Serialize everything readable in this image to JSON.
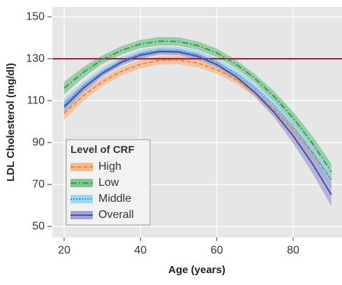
{
  "chart_data": {
    "type": "line-band",
    "xlabel": "Age (years)",
    "ylabel": "LDL Cholesterol (mg/dl)",
    "x": [
      20,
      25,
      30,
      35,
      40,
      45,
      50,
      55,
      60,
      65,
      70,
      75,
      80,
      85,
      90
    ],
    "series": [
      {
        "name": "High",
        "color": "#e8894a",
        "band_color": "#f5b98a",
        "dash": "6,3",
        "values": [
          104.0,
          112.3,
          119.0,
          124.0,
          127.4,
          129.2,
          129.4,
          127.9,
          124.8,
          120.1,
          113.8,
          105.8,
          96.2,
          85.0,
          72.2
        ],
        "lower": [
          101.0,
          109.8,
          117.0,
          122.0,
          125.4,
          127.2,
          127.4,
          125.9,
          122.8,
          118.1,
          111.8,
          103.3,
          93.2,
          81.5,
          68.2
        ],
        "upper": [
          107.0,
          114.8,
          121.0,
          126.0,
          129.4,
          131.2,
          131.4,
          129.9,
          126.8,
          122.1,
          115.8,
          108.3,
          99.2,
          88.5,
          76.2
        ]
      },
      {
        "name": "Low",
        "color": "#3a9a55",
        "band_color": "#7cc58f",
        "dash": "9,3,2,3",
        "values": [
          116.0,
          123.5,
          129.6,
          134.0,
          137.0,
          138.4,
          138.2,
          136.3,
          132.8,
          127.5,
          120.6,
          112.0,
          101.7,
          89.7,
          76.0
        ],
        "lower": [
          113.0,
          121.0,
          127.6,
          132.0,
          135.0,
          136.4,
          136.2,
          134.3,
          130.8,
          125.5,
          118.6,
          109.5,
          98.7,
          86.2,
          72.0
        ],
        "upper": [
          119.0,
          126.0,
          131.6,
          136.0,
          139.0,
          140.4,
          140.2,
          138.3,
          134.8,
          129.5,
          122.6,
          114.5,
          104.7,
          93.2,
          80.0
        ]
      },
      {
        "name": "Middle",
        "color": "#2f9fd0",
        "band_color": "#9dd6ee",
        "dash": "2,2",
        "values": [
          108.0,
          116.7,
          123.7,
          128.9,
          132.3,
          133.9,
          133.7,
          131.9,
          128.3,
          123.1,
          116.3,
          107.7,
          97.5,
          85.6,
          72.1
        ],
        "lower": [
          105.0,
          114.2,
          121.7,
          126.9,
          130.3,
          131.9,
          131.7,
          129.9,
          126.3,
          121.1,
          114.3,
          105.2,
          94.5,
          82.1,
          68.1
        ],
        "upper": [
          111.0,
          119.2,
          125.7,
          130.9,
          134.3,
          135.9,
          135.7,
          133.9,
          130.3,
          125.1,
          118.3,
          110.2,
          100.5,
          89.1,
          76.1
        ]
      },
      {
        "name": "Overall",
        "color": "#4a4fa0",
        "band_color": "#a0a3d6",
        "dash": "none",
        "values": [
          107.0,
          115.9,
          123.0,
          128.3,
          131.7,
          133.4,
          133.2,
          131.1,
          127.2,
          121.5,
          113.9,
          104.5,
          93.2,
          80.1,
          65.1
        ],
        "lower": [
          104.5,
          113.9,
          121.5,
          126.8,
          130.2,
          131.9,
          131.7,
          129.6,
          125.7,
          120.0,
          111.9,
          102.0,
          89.7,
          75.6,
          59.6
        ],
        "upper": [
          109.5,
          117.9,
          124.5,
          129.8,
          133.2,
          134.9,
          134.7,
          132.6,
          128.7,
          123.0,
          115.9,
          107.0,
          96.7,
          84.6,
          70.6
        ]
      }
    ],
    "hline": {
      "value": 130,
      "color": "#b0103c"
    },
    "legend_title": "Level of CRF",
    "legend": "lower left",
    "xlim": [
      16.9,
      92.8
    ],
    "xticks": [
      20,
      40,
      60,
      80
    ],
    "ylim": [
      44.7,
      154.7
    ],
    "yticks": [
      50,
      70,
      90,
      110,
      130,
      150
    ],
    "grid": true
  }
}
